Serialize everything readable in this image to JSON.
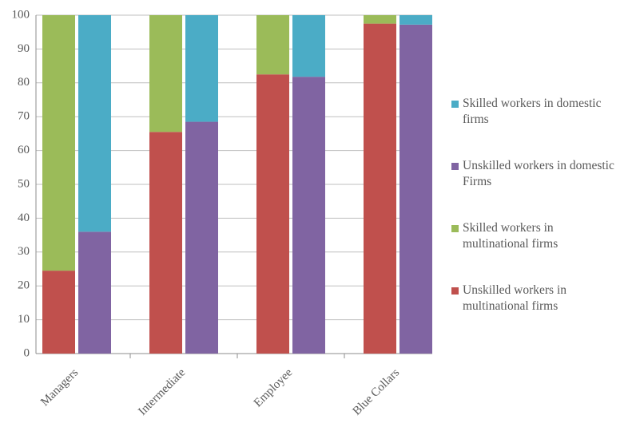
{
  "chart_data": {
    "type": "stacked-bar",
    "categories": [
      "Managers",
      "Intermediate",
      "Employee",
      "Blue Collars"
    ],
    "series": [
      {
        "name": "Skilled workers in domestic firms",
        "color": "#4bacc6",
        "stack": 1,
        "values": [
          64,
          31.5,
          18.2,
          2.8
        ]
      },
      {
        "name": "Unskilled workers in domestic Firms",
        "color": "#8064a2",
        "stack": 1,
        "values": [
          36,
          68.5,
          81.8,
          97.2
        ]
      },
      {
        "name": "Skilled workers in multinational firms",
        "color": "#9bbb59",
        "stack": 0,
        "values": [
          75.5,
          34.5,
          17.5,
          2.5
        ]
      },
      {
        "name": "Unskilled workers in multinational firms",
        "color": "#c0504d",
        "stack": 0,
        "values": [
          24.5,
          65.5,
          82.5,
          97.5
        ]
      }
    ],
    "ylim": [
      0,
      100
    ],
    "yticks": [
      0,
      10,
      20,
      30,
      40,
      50,
      60,
      70,
      80,
      90,
      100
    ],
    "grid": true,
    "legend": "right"
  }
}
